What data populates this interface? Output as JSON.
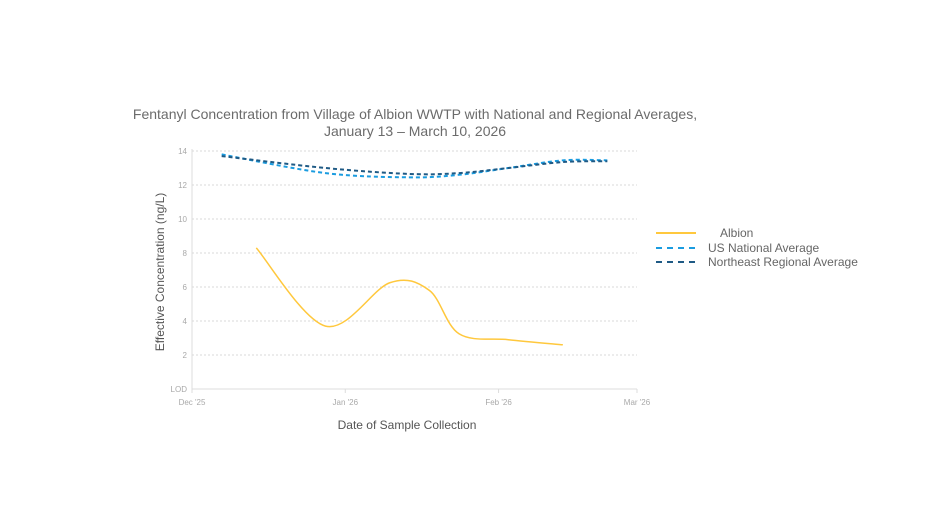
{
  "chart_data": {
    "type": "line",
    "title": "Fentanyl Concentration from Village of Albion WWTP with National and Regional Averages,",
    "subtitle": "January 13 – March 10, 2026",
    "xlabel": "Date of Sample Collection",
    "ylabel": "Effective Concentration (ng/L)",
    "xlim": [
      "2025-12-01",
      "2026-03-01"
    ],
    "ylim": [
      0,
      14
    ],
    "x_ticks": [
      {
        "date": "2025-12-01",
        "label": "Dec '25"
      },
      {
        "date": "2026-01-01",
        "label": "Jan '26"
      },
      {
        "date": "2026-02-01",
        "label": "Feb '26"
      },
      {
        "date": "2026-03-01",
        "label": "Mar '26"
      }
    ],
    "y_ticks": [
      {
        "value": 0,
        "label": "LOD"
      },
      {
        "value": 2,
        "label": "2"
      },
      {
        "value": 4,
        "label": "4"
      },
      {
        "value": 6,
        "label": "6"
      },
      {
        "value": 8,
        "label": "8"
      },
      {
        "value": 10,
        "label": "10"
      },
      {
        "value": 12,
        "label": "12"
      },
      {
        "value": 14,
        "label": "14"
      }
    ],
    "grid": "horizontal dotted",
    "legend_position": "right",
    "series": [
      {
        "name": "Albion",
        "color": "#ffc83d",
        "style": "solid",
        "x": [
          "2025-12-14",
          "2025-12-28",
          "2026-01-10",
          "2026-01-18",
          "2026-01-24",
          "2026-02-03",
          "2026-02-14"
        ],
        "y": [
          8.3,
          3.7,
          6.25,
          5.8,
          3.25,
          2.9,
          2.6
        ]
      },
      {
        "name": "US National Average",
        "color": "#1a9ce0",
        "style": "dashed",
        "x": [
          "2025-12-07",
          "2025-12-28",
          "2026-01-14",
          "2026-01-24",
          "2026-02-03",
          "2026-02-14",
          "2026-02-23"
        ],
        "y": [
          13.8,
          12.7,
          12.45,
          12.6,
          13.0,
          13.45,
          13.45
        ]
      },
      {
        "name": "Northeast Regional Average",
        "color": "#1f5a85",
        "style": "dashed",
        "x": [
          "2025-12-07",
          "2025-12-28",
          "2026-01-14",
          "2026-01-24",
          "2026-02-03",
          "2026-02-14",
          "2026-02-23"
        ],
        "y": [
          13.7,
          13.0,
          12.65,
          12.7,
          13.0,
          13.35,
          13.4
        ]
      }
    ]
  }
}
